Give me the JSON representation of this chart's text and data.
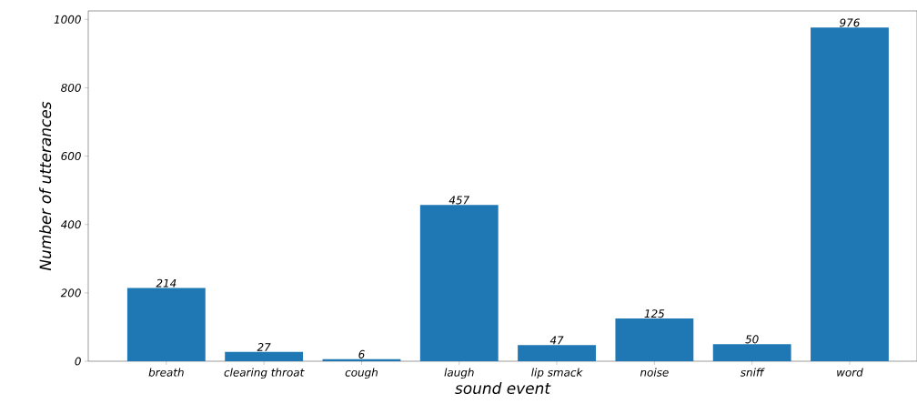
{
  "chart_data": {
    "type": "bar",
    "xlabel": "sound event",
    "ylabel": "Number of utterances",
    "categories": [
      "breath",
      "clearing throat",
      "cough",
      "laugh",
      "lip smack",
      "noise",
      "sniff",
      "word"
    ],
    "values": [
      214,
      27,
      6,
      457,
      47,
      125,
      50,
      976
    ],
    "color": "#1f77b4",
    "ylim": [
      0,
      1024.8
    ],
    "yticks": [
      0,
      200,
      400,
      600,
      800,
      1000
    ],
    "data_labels": true,
    "grid": false
  }
}
